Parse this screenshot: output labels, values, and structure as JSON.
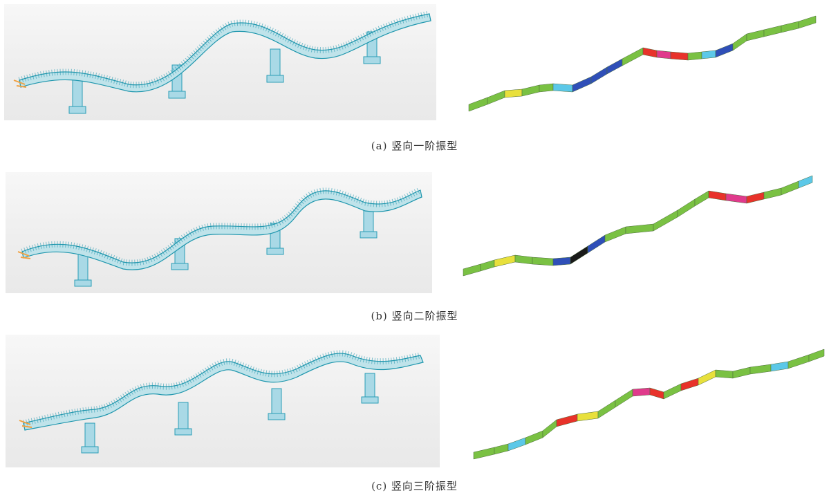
{
  "modes": [
    {
      "id": "a",
      "caption": "(a) 竖向一阶振型"
    },
    {
      "id": "b",
      "caption": "(b) 竖向二阶振型"
    },
    {
      "id": "c",
      "caption": "(c) 竖向三阶振型"
    }
  ],
  "colors": {
    "fea_background": "#ececec",
    "deck_fill": "#bfe3ea",
    "deck_line": "#1e96ad",
    "pier_fill": "#a9d9e6",
    "contour_low": "#1a1a1a",
    "contour_blue": "#2f4fb8",
    "contour_cyan": "#5cc8e8",
    "contour_green": "#7ac143",
    "contour_yellow": "#e8e03c",
    "contour_red": "#e8322a",
    "contour_magenta": "#e03a8c"
  },
  "mode_contour_colors": [
    [
      "#7ac143",
      "#7ac143",
      "#e8e03c",
      "#7ac143",
      "#7ac143",
      "#5cc8e8",
      "#2f4fb8",
      "#2f4fb8",
      "#2f4fb8",
      "#7ac143",
      "#e8322a",
      "#e03a8c",
      "#e8322a",
      "#7ac143",
      "#5cc8e8",
      "#2f4fb8",
      "#7ac143",
      "#7ac143",
      "#7ac143",
      "#7ac143"
    ],
    [
      "#7ac143",
      "#7ac143",
      "#e8e03c",
      "#7ac143",
      "#7ac143",
      "#2f4fb8",
      "#1a1a1a",
      "#2f4fb8",
      "#7ac143",
      "#7ac143",
      "#7ac143",
      "#7ac143",
      "#7ac143",
      "#e8322a",
      "#e03a8c",
      "#e8322a",
      "#7ac143",
      "#7ac143",
      "#5cc8e8",
      "#7ac143"
    ],
    [
      "#7ac143",
      "#7ac143",
      "#5cc8e8",
      "#7ac143",
      "#7ac143",
      "#e8322a",
      "#e8e03c",
      "#7ac143",
      "#7ac143",
      "#e03a8c",
      "#e8322a",
      "#7ac143",
      "#e8322a",
      "#e8e03c",
      "#7ac143",
      "#7ac143",
      "#7ac143",
      "#5cc8e8",
      "#7ac143",
      "#7ac143"
    ]
  ]
}
